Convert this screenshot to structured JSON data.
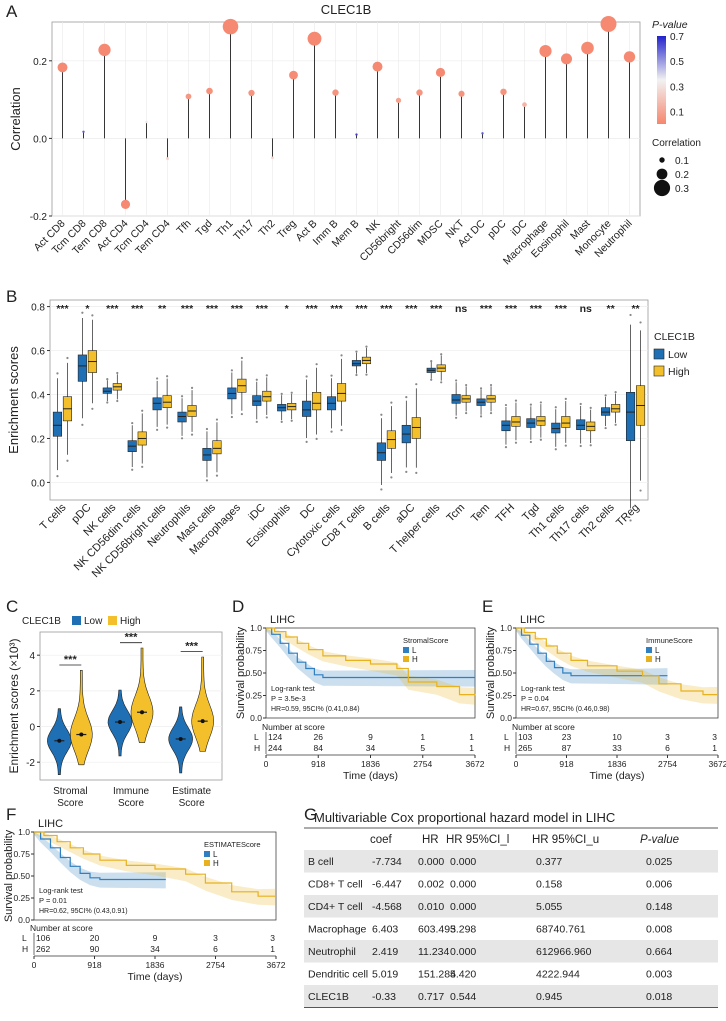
{
  "panel_letters": [
    "A",
    "B",
    "C",
    "D",
    "E",
    "F",
    "G"
  ],
  "chart_data": [
    {
      "id": "A",
      "type": "lollipop",
      "title": "CLEC1B",
      "ylabel": "Correlation",
      "ylim": [
        -0.2,
        0.3
      ],
      "yticks": [
        -0.2,
        0.0,
        0.2
      ],
      "categories": [
        "Act CD8",
        "Tcm CD8",
        "Tem CD8",
        "Act CD4",
        "Tcm CD4",
        "Tem CD4",
        "Tfh",
        "Tgd",
        "Th1",
        "Th17",
        "Th2",
        "Treg",
        "Act B",
        "Imm B",
        "Mem B",
        "NK",
        "CD56bright",
        "CD56dim",
        "MDSC",
        "NKT",
        "Act DC",
        "pDC",
        "iDC",
        "Macrophage",
        "Eosinophil",
        "Mast",
        "Monocyte",
        "Neutrophil"
      ],
      "values": [
        0.183,
        0.017,
        0.228,
        -0.17,
        0.042,
        -0.052,
        0.108,
        0.122,
        0.288,
        0.117,
        -0.05,
        0.163,
        0.257,
        0.118,
        0.01,
        0.185,
        0.098,
        0.118,
        0.17,
        0.115,
        0.013,
        0.12,
        0.087,
        0.225,
        0.205,
        0.233,
        0.295,
        0.21
      ],
      "pvalues": [
        0.01,
        0.6,
        0.01,
        0.01,
        0.3,
        0.25,
        0.06,
        0.04,
        0.01,
        0.05,
        0.25,
        0.02,
        0.01,
        0.05,
        0.65,
        0.01,
        0.09,
        0.05,
        0.01,
        0.05,
        0.6,
        0.05,
        0.15,
        0.01,
        0.01,
        0.01,
        0.01,
        0.01
      ],
      "pvalue_legend": {
        "title": "P-value",
        "ticks": [
          "0.7",
          "0.5",
          "0.3",
          "0.1"
        ],
        "range": [
          0.0,
          0.7
        ]
      },
      "size_legend": {
        "title": "Correlation",
        "ticks": [
          "0.1",
          "0.2",
          "0.3"
        ],
        "values": [
          0.1,
          0.2,
          0.3
        ]
      },
      "colors": {
        "low": "#f6866d",
        "mid": "#f2f2f2",
        "high": "#2222cc"
      }
    },
    {
      "id": "B",
      "type": "boxplot",
      "ylabel": "Enrichment scores",
      "ylim": [
        -0.08,
        0.83
      ],
      "yticks": [
        0.0,
        0.2,
        0.4,
        0.6,
        0.8
      ],
      "legend_title": "CLEC1B",
      "group_names": [
        "Low",
        "High"
      ],
      "group_colors": [
        "#1f6fb5",
        "#f3c02b"
      ],
      "categories": [
        "T cells",
        "pDC",
        "NK cells",
        "NK CD56dim cells",
        "NK CD56bright cells",
        "Neutrophils",
        "Mast cells",
        "Macrophages",
        "iDC",
        "Eosinophils",
        "DC",
        "Cytotoxic cells",
        "CD8 T cells",
        "B cells",
        "aDC",
        "T helper cells",
        "Tcm",
        "Tem",
        "TFH",
        "Tgd",
        "Th1 cells",
        "Th17 cells",
        "Th2 cells",
        "TReg"
      ],
      "significance": [
        "***",
        "*",
        "***",
        "***",
        "**",
        "***",
        "***",
        "***",
        "***",
        "*",
        "***",
        "***",
        "***",
        "***",
        "***",
        "***",
        "ns",
        "***",
        "***",
        "***",
        "***",
        "ns",
        "**",
        "**"
      ],
      "boxes_low": [
        [
          0.21,
          0.26,
          0.32
        ],
        [
          0.46,
          0.53,
          0.58
        ],
        [
          0.405,
          0.415,
          0.43
        ],
        [
          0.14,
          0.165,
          0.19
        ],
        [
          0.33,
          0.36,
          0.385
        ],
        [
          0.275,
          0.3,
          0.32
        ],
        [
          0.1,
          0.125,
          0.155
        ],
        [
          0.38,
          0.405,
          0.43
        ],
        [
          0.35,
          0.37,
          0.395
        ],
        [
          0.325,
          0.34,
          0.355
        ],
        [
          0.3,
          0.33,
          0.37
        ],
        [
          0.33,
          0.36,
          0.39
        ],
        [
          0.53,
          0.54,
          0.555
        ],
        [
          0.1,
          0.135,
          0.18
        ],
        [
          0.18,
          0.22,
          0.26
        ],
        [
          0.5,
          0.51,
          0.52
        ],
        [
          0.36,
          0.375,
          0.4
        ],
        [
          0.35,
          0.365,
          0.38
        ],
        [
          0.235,
          0.26,
          0.28
        ],
        [
          0.25,
          0.27,
          0.29
        ],
        [
          0.225,
          0.245,
          0.27
        ],
        [
          0.24,
          0.26,
          0.285
        ],
        [
          0.305,
          0.32,
          0.34
        ],
        [
          0.19,
          0.32,
          0.41
        ]
      ],
      "boxes_high": [
        [
          0.28,
          0.335,
          0.39
        ],
        [
          0.5,
          0.55,
          0.6
        ],
        [
          0.42,
          0.435,
          0.45
        ],
        [
          0.17,
          0.2,
          0.23
        ],
        [
          0.34,
          0.365,
          0.395
        ],
        [
          0.3,
          0.325,
          0.35
        ],
        [
          0.13,
          0.155,
          0.19
        ],
        [
          0.41,
          0.44,
          0.47
        ],
        [
          0.37,
          0.39,
          0.415
        ],
        [
          0.33,
          0.345,
          0.36
        ],
        [
          0.33,
          0.36,
          0.41
        ],
        [
          0.37,
          0.405,
          0.45
        ],
        [
          0.54,
          0.555,
          0.57
        ],
        [
          0.155,
          0.195,
          0.235
        ],
        [
          0.2,
          0.25,
          0.295
        ],
        [
          0.505,
          0.52,
          0.535
        ],
        [
          0.365,
          0.38,
          0.395
        ],
        [
          0.365,
          0.38,
          0.395
        ],
        [
          0.255,
          0.275,
          0.3
        ],
        [
          0.26,
          0.28,
          0.3
        ],
        [
          0.25,
          0.27,
          0.3
        ],
        [
          0.235,
          0.255,
          0.275
        ],
        [
          0.32,
          0.335,
          0.355
        ],
        [
          0.26,
          0.35,
          0.44
        ]
      ]
    },
    {
      "id": "C",
      "type": "violin",
      "ylabel": "Enrichment scores (×10³)",
      "ylim": [
        -3,
        5.3
      ],
      "yticks": [
        -2,
        0,
        2,
        4
      ],
      "legend_title": "CLEC1B",
      "group_names": [
        "Low",
        "High"
      ],
      "group_colors": [
        "#1f6fb5",
        "#f3c02b"
      ],
      "categories": [
        [
          "Stromal",
          "Score"
        ],
        [
          "Immune",
          "Score"
        ],
        [
          "Estimate",
          "Score"
        ]
      ],
      "medians_low": [
        -0.8,
        0.25,
        -0.7
      ],
      "medians_high": [
        -0.45,
        0.8,
        0.3
      ],
      "significance": [
        "***",
        "***",
        "***"
      ]
    },
    {
      "id": "D",
      "type": "km",
      "title": "LIHC",
      "ylabel": "Survival probability",
      "xlabel": "Time (days)",
      "xticks": [
        0,
        918,
        1836,
        2754,
        3672
      ],
      "yticks": [
        0.0,
        0.25,
        0.5,
        0.75,
        1.0
      ],
      "score_name": "StromalScore",
      "group_labels": [
        "L",
        "H"
      ],
      "test_label": "Log-rank test",
      "p_text": "P = 3.5e-3",
      "hr_text": "HR=0.59, 95CI% (0.41,0.84)",
      "risk_title": "Number at score",
      "risk_low": [
        "124",
        "26",
        "9",
        "1",
        "1"
      ],
      "risk_high": [
        "244",
        "84",
        "34",
        "5",
        "1"
      ],
      "curve_low": [
        [
          0,
          1
        ],
        [
          100,
          0.93
        ],
        [
          250,
          0.83
        ],
        [
          400,
          0.72
        ],
        [
          550,
          0.62
        ],
        [
          700,
          0.55
        ],
        [
          850,
          0.48
        ],
        [
          1000,
          0.45
        ],
        [
          3672,
          0.45
        ]
      ],
      "curve_high": [
        [
          0,
          1
        ],
        [
          150,
          0.96
        ],
        [
          350,
          0.9
        ],
        [
          550,
          0.83
        ],
        [
          750,
          0.76
        ],
        [
          1000,
          0.69
        ],
        [
          1400,
          0.64
        ],
        [
          1836,
          0.6
        ],
        [
          2300,
          0.55
        ],
        [
          2500,
          0.4
        ],
        [
          3000,
          0.35
        ],
        [
          3400,
          0.26
        ],
        [
          3672,
          0.25
        ]
      ]
    },
    {
      "id": "E",
      "type": "km",
      "title": "LIHC",
      "ylabel": "Survival probability",
      "xlabel": "Time (days)",
      "xticks": [
        0,
        918,
        1836,
        2754,
        3672
      ],
      "yticks": [
        0.0,
        0.25,
        0.5,
        0.75,
        1.0
      ],
      "score_name": "ImmuneScore",
      "group_labels": [
        "L",
        "H"
      ],
      "test_label": "Log-rank test",
      "p_text": "P = 0.04",
      "hr_text": "HR=0.67, 95CI% (0.46,0.98)",
      "risk_title": "Number at score",
      "risk_low": [
        "103",
        "23",
        "10",
        "3",
        "3"
      ],
      "risk_high": [
        "265",
        "87",
        "33",
        "6",
        "1"
      ],
      "curve_low": [
        [
          0,
          1
        ],
        [
          100,
          0.92
        ],
        [
          250,
          0.82
        ],
        [
          400,
          0.72
        ],
        [
          550,
          0.63
        ],
        [
          700,
          0.56
        ],
        [
          850,
          0.5
        ],
        [
          1000,
          0.47
        ],
        [
          2200,
          0.47
        ],
        [
          2754,
          0.47
        ]
      ],
      "curve_high": [
        [
          0,
          1
        ],
        [
          150,
          0.95
        ],
        [
          350,
          0.88
        ],
        [
          550,
          0.8
        ],
        [
          750,
          0.72
        ],
        [
          1000,
          0.64
        ],
        [
          1300,
          0.58
        ],
        [
          1836,
          0.52
        ],
        [
          2300,
          0.47
        ],
        [
          2600,
          0.38
        ],
        [
          3000,
          0.3
        ],
        [
          3400,
          0.26
        ],
        [
          3672,
          0.26
        ]
      ]
    },
    {
      "id": "F",
      "type": "km",
      "title": "LIHC",
      "ylabel": "Survival probability",
      "xlabel": "Time (days)",
      "xticks": [
        0,
        918,
        1836,
        2754,
        3672
      ],
      "yticks": [
        0.0,
        0.25,
        0.5,
        0.75,
        1.0
      ],
      "score_name": "ESTIMATEScore",
      "group_labels": [
        "L",
        "H"
      ],
      "test_label": "Log-rank test",
      "p_text": "P = 0.01",
      "hr_text": "HR=0.62, 95CI% (0.43,0.91)",
      "risk_title": "Number at score",
      "risk_low": [
        "106",
        "20",
        "9",
        "3",
        "3"
      ],
      "risk_high": [
        "262",
        "90",
        "34",
        "6",
        "1"
      ],
      "curve_low": [
        [
          0,
          1
        ],
        [
          100,
          0.92
        ],
        [
          250,
          0.82
        ],
        [
          400,
          0.71
        ],
        [
          550,
          0.61
        ],
        [
          700,
          0.53
        ],
        [
          850,
          0.48
        ],
        [
          1000,
          0.46
        ],
        [
          2000,
          0.46
        ]
      ],
      "curve_high": [
        [
          0,
          1
        ],
        [
          150,
          0.96
        ],
        [
          350,
          0.89
        ],
        [
          550,
          0.82
        ],
        [
          750,
          0.75
        ],
        [
          1000,
          0.68
        ],
        [
          1400,
          0.62
        ],
        [
          1836,
          0.58
        ],
        [
          2300,
          0.52
        ],
        [
          2600,
          0.42
        ],
        [
          3000,
          0.32
        ],
        [
          3400,
          0.27
        ],
        [
          3672,
          0.27
        ]
      ]
    },
    {
      "id": "G",
      "type": "table",
      "title": "Multivariable Cox proportional hazard model in LIHC",
      "columns": [
        "",
        "coef",
        "HR",
        "HR 95%CI_l",
        "HR 95%CI_u",
        "P-value"
      ],
      "rows": [
        [
          "B cell",
          "-7.734",
          "0.000",
          "0.000",
          "0.377",
          "0.025"
        ],
        [
          "CD8+ T cell",
          "-6.447",
          "0.002",
          "0.000",
          "0.158",
          "0.006"
        ],
        [
          "CD4+ T cell",
          "-4.568",
          "0.010",
          "0.000",
          "5.055",
          "0.148"
        ],
        [
          "Macrophage",
          "6.403",
          "603.493",
          "5.298",
          "68740.761",
          "0.008"
        ],
        [
          "Neutrophil",
          "2.419",
          "11.234",
          "0.000",
          "612966.960",
          "0.664"
        ],
        [
          "Dendritic cell",
          "5.019",
          "151.284",
          "5.420",
          "4222.944",
          "0.003"
        ],
        [
          "CLEC1B",
          "-0.33",
          "0.717",
          "0.544",
          "0.945",
          "0.018"
        ]
      ]
    }
  ]
}
